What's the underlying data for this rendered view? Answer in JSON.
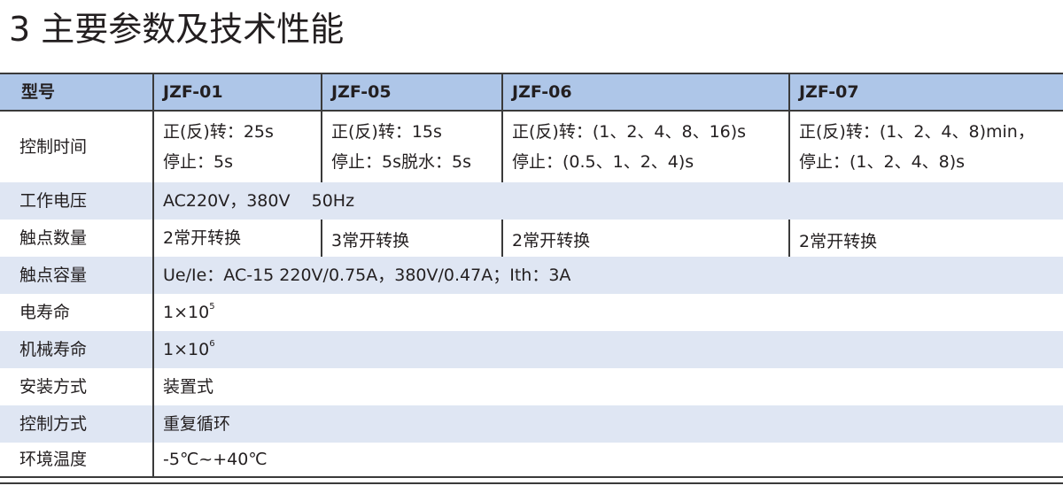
{
  "title": "3 主要参数及技术性能",
  "header": {
    "label": "型号",
    "models": [
      "JZF-01",
      "JZF-05",
      "JZF-06",
      "JZF-07"
    ]
  },
  "rows": {
    "control_time": {
      "label": "控制时间",
      "cells": [
        [
          "正(反)转：25s",
          "停止：5s"
        ],
        [
          "正(反)转：15s",
          "停止：5s脱水：5s"
        ],
        [
          "正(反)转：(1、2、4、8、16)s",
          "停止：(0.5、1、2、4)s"
        ],
        [
          "正(反)转：(1、2、4、8)min，",
          "停止：(1、2、4、8)s"
        ]
      ]
    },
    "voltage": {
      "label": "工作电压",
      "value": "AC220V，380V    50Hz"
    },
    "contacts": {
      "label": "触点数量",
      "cells": [
        "2常开转换",
        "3常开转换",
        "2常开转换",
        "2常开转换"
      ]
    },
    "capacity": {
      "label": "触点容量",
      "value": "Ue/Ie：AC-15 220V/0.75A，380V/0.47A；Ith：3A"
    },
    "elec_life": {
      "label": "电寿命",
      "base": "1×10",
      "exp": "5"
    },
    "mech_life": {
      "label": "机械寿命",
      "base": "1×10",
      "exp": "6"
    },
    "mounting": {
      "label": "安装方式",
      "value": "装置式"
    },
    "control_mode": {
      "label": "控制方式",
      "value": "重复循环"
    },
    "temperature": {
      "label": "环境温度",
      "value": "-5℃~+40℃"
    }
  },
  "colors": {
    "header_bg": "#aec6e8",
    "alt_row_bg": "#dfe6f3",
    "rule": "#3a3a3a"
  }
}
